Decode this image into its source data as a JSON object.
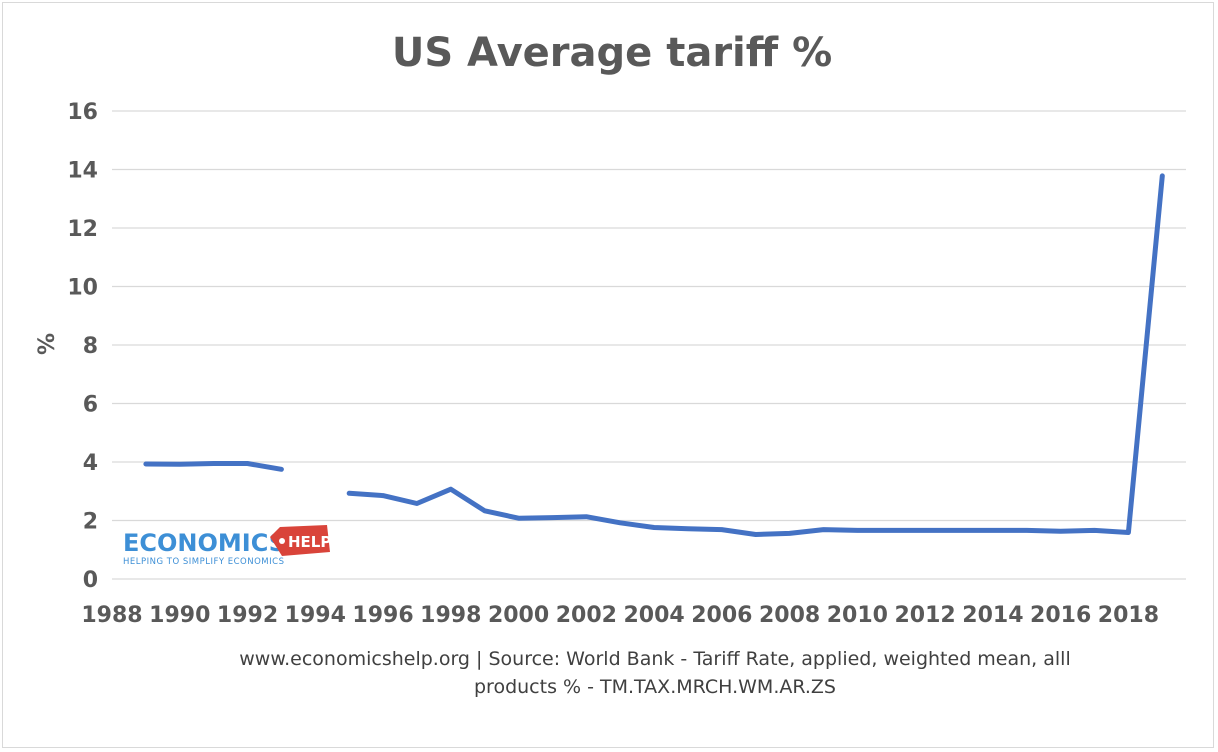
{
  "chart_data": {
    "type": "line",
    "title": "US Average  tariff %",
    "xlabel": "",
    "ylabel": "%",
    "ylim": [
      0,
      16
    ],
    "yticks": [
      "0",
      "2",
      "4",
      "6",
      "8",
      "10",
      "12",
      "14",
      "16"
    ],
    "xlim": [
      1988,
      2019.7
    ],
    "xticks": [
      "1988",
      "1990",
      "1992",
      "1994",
      "1996",
      "1998",
      "2000",
      "2002",
      "2004",
      "2006",
      "2008",
      "2010",
      "2012",
      "2014",
      "2016",
      "2018"
    ],
    "grid": true,
    "series": [
      {
        "name": "US Average tariff %",
        "color": "#4472c4",
        "x": [
          1989,
          1990,
          1991,
          1992,
          1993,
          1994,
          1995,
          1996,
          1997,
          1998,
          1999,
          2000,
          2001,
          2002,
          2003,
          2004,
          2005,
          2006,
          2007,
          2008,
          2009,
          2010,
          2011,
          2012,
          2013,
          2014,
          2015,
          2016,
          2017,
          2018,
          2019
        ],
        "y": [
          3.93,
          3.92,
          3.95,
          3.95,
          3.75,
          null,
          2.93,
          2.85,
          2.58,
          3.07,
          2.33,
          2.08,
          2.1,
          2.13,
          1.92,
          1.76,
          1.72,
          1.69,
          1.52,
          1.56,
          1.69,
          1.66,
          1.66,
          1.66,
          1.66,
          1.66,
          1.66,
          1.63,
          1.66,
          1.59,
          13.78
        ]
      }
    ]
  },
  "source_line1": "www.economicshelp.org  | Source: World Bank - Tariff Rate, applied, weighted mean, alll",
  "source_line2": "products % - TM.TAX.MRCH.WM.AR.ZS",
  "logo": {
    "main": "ECONOMICS",
    "badge": "HELP",
    "tagline": "HELPING TO SIMPLIFY ECONOMICS",
    "color_blue": "#3d8fd6",
    "color_red": "#d9443a"
  }
}
